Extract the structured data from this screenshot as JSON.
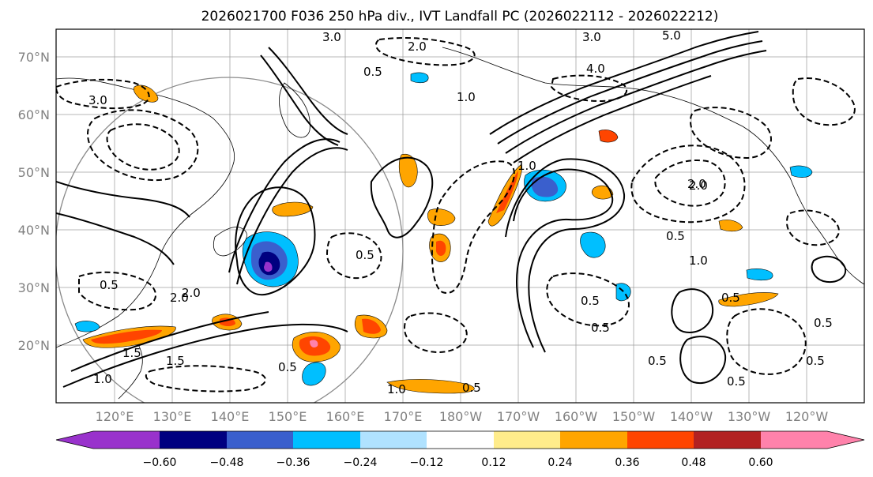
{
  "title": "2026021700 F036 250 hPa div., IVT Landfall PC (2026022112 - 2026022212)",
  "map": {
    "lat_labels": [
      "70°N",
      "60°N",
      "50°N",
      "40°N",
      "30°N",
      "20°N"
    ],
    "lon_labels": [
      "120°E",
      "130°E",
      "140°E",
      "150°E",
      "160°E",
      "170°E",
      "180°W",
      "170°W",
      "160°W",
      "150°W",
      "140°W",
      "130°W",
      "120°W"
    ],
    "contour_labels": [
      "3.0",
      "2.0",
      "1.0",
      "0.5",
      "4.0",
      "3.0",
      "5.0",
      "2.0",
      "1.0",
      "0.5",
      "0.5",
      "0.5",
      "2.0",
      "1.5",
      "1.0",
      "0.5",
      "0.5",
      "1.5",
      "1.0",
      "0.5",
      "0.5",
      "0.5",
      "0.5",
      "3.0",
      "2.0",
      "1.0",
      "0.5",
      "0.5",
      "0.5",
      "2.0"
    ]
  },
  "colorbar": {
    "tick_labels": [
      "−0.60",
      "−0.48",
      "−0.36",
      "−0.24",
      "−0.12",
      "0.12",
      "0.24",
      "0.36",
      "0.48",
      "0.60"
    ],
    "colors": [
      "#9932cc",
      "#000080",
      "#3a5fcd",
      "#00bfff",
      "#b0e2ff",
      "#ffffff",
      "#ffec8b",
      "#ffa500",
      "#ff4500",
      "#b22222",
      "#ff82ab"
    ]
  },
  "palette": {
    "neg": [
      "#9932cc",
      "#000080",
      "#3a5fcd",
      "#00bfff",
      "#b0e2ff"
    ],
    "pos": [
      "#ffec8b",
      "#ffa500",
      "#ff4500",
      "#b22222",
      "#ff82ab"
    ]
  }
}
